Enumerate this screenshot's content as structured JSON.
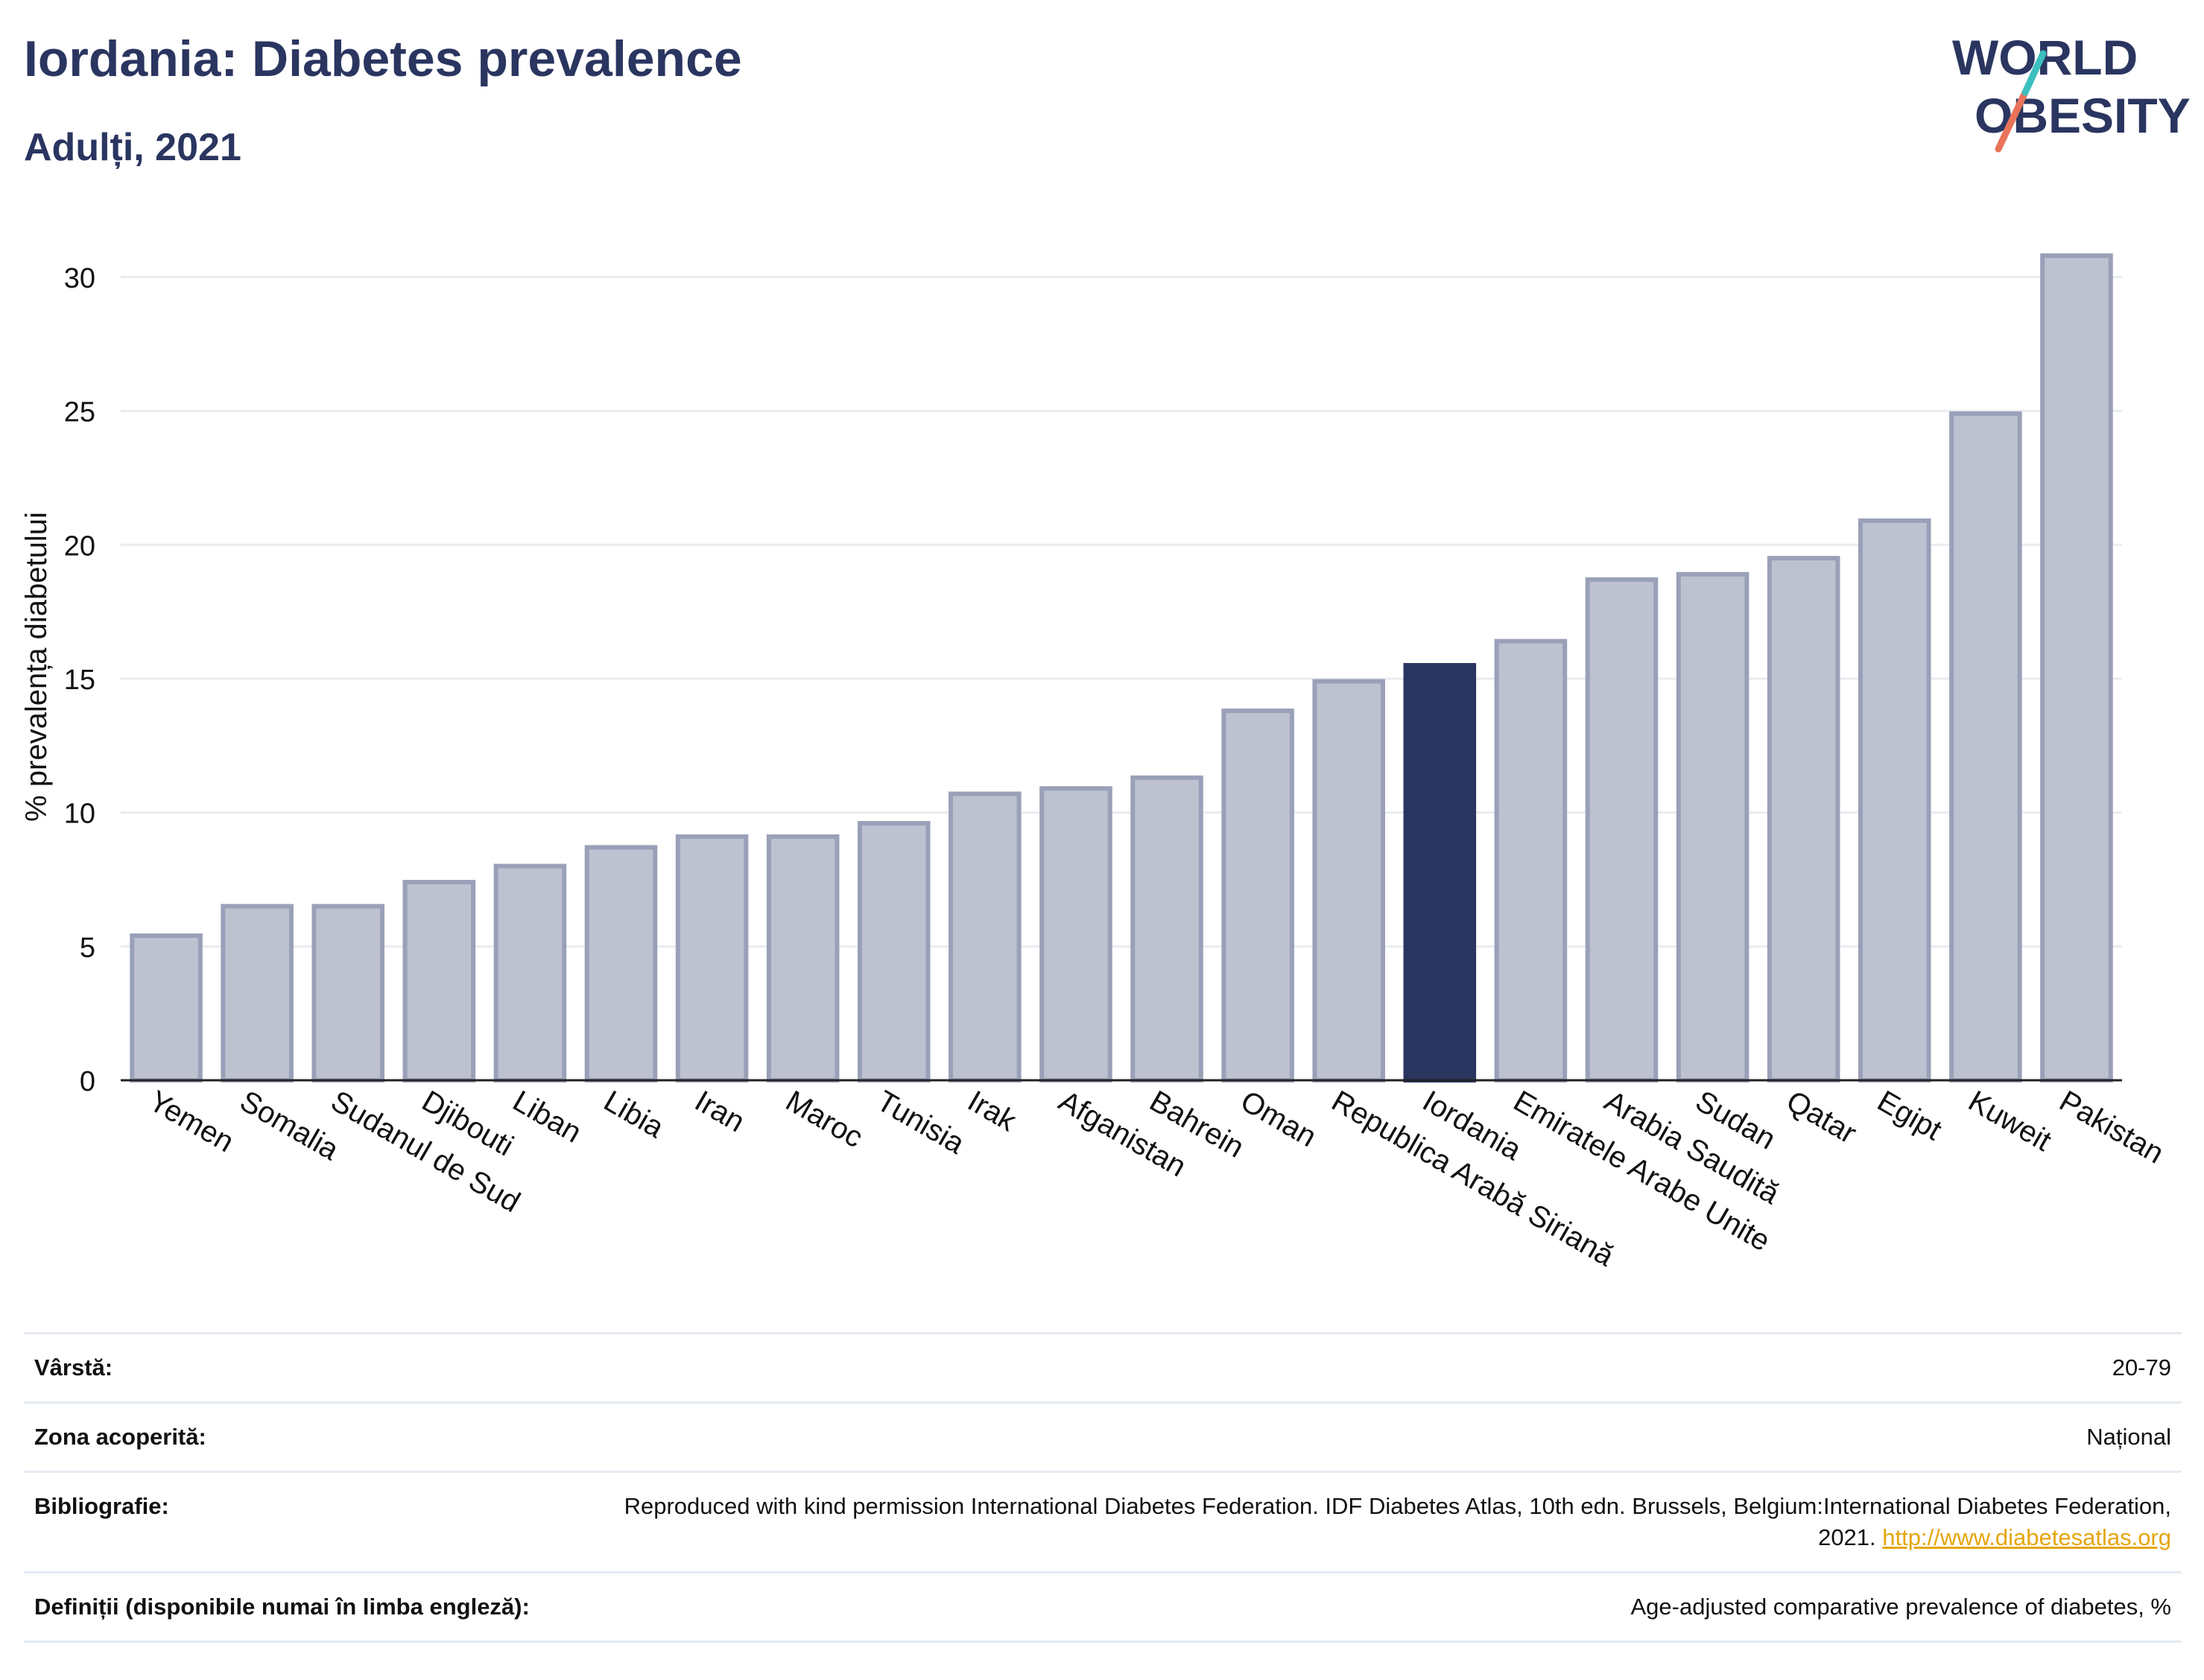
{
  "header": {
    "title": "Iordania: Diabetes prevalence",
    "subtitle": "Adulți, 2021"
  },
  "logo": {
    "line1": "WORLD",
    "line2": "OBESITY",
    "accent_teal": "#3bbfbf",
    "accent_coral": "#e8735a",
    "text_color": "#2a3560"
  },
  "colors": {
    "bar": "#bdc1d0",
    "bar_border": "#9aa0b8",
    "highlight": "#2a3560",
    "grid": "#e9ecf1"
  },
  "chart_data": {
    "type": "bar",
    "title": "Iordania: Diabetes prevalence",
    "subtitle": "Adulți, 2021",
    "xlabel": "",
    "ylabel": "% prevalența diabetului",
    "ylim": [
      0,
      32
    ],
    "yticks": [
      0,
      5,
      10,
      15,
      20,
      25,
      30
    ],
    "grid": true,
    "highlight": "Iordania",
    "categories": [
      "Yemen",
      "Somalia",
      "Sudanul de Sud",
      "Djibouti",
      "Liban",
      "Libia",
      "Iran",
      "Maroc",
      "Tunisia",
      "Irak",
      "Afganistan",
      "Bahrein",
      "Oman",
      "Republica Arabă Siriană",
      "Iordania",
      "Emiratele Arabe Unite",
      "Arabia Saudită",
      "Sudan",
      "Qatar",
      "Egipt",
      "Kuweit",
      "Pakistan"
    ],
    "values": [
      5.4,
      6.5,
      6.5,
      7.4,
      8.0,
      8.7,
      9.1,
      9.1,
      9.6,
      10.7,
      10.9,
      11.3,
      13.8,
      14.9,
      15.5,
      16.4,
      18.7,
      18.9,
      19.5,
      20.9,
      24.9,
      30.8
    ]
  },
  "meta": {
    "age_label": "Vârstă:",
    "age_value": "20-79",
    "area_label": "Zona acoperită:",
    "area_value": "Național",
    "bib_label": "Bibliografie:",
    "bib_text": "Reproduced with kind permission International Diabetes Federation.  IDF Diabetes Atlas, 10th edn. Brussels, Belgium:International Diabetes Federation, 2021.",
    "bib_link": "http://www.diabetesatlas.org",
    "def_label": "Definiții (disponibile numai în limba engleză):",
    "def_value": "Age-adjusted comparative prevalence of diabetes, %"
  }
}
